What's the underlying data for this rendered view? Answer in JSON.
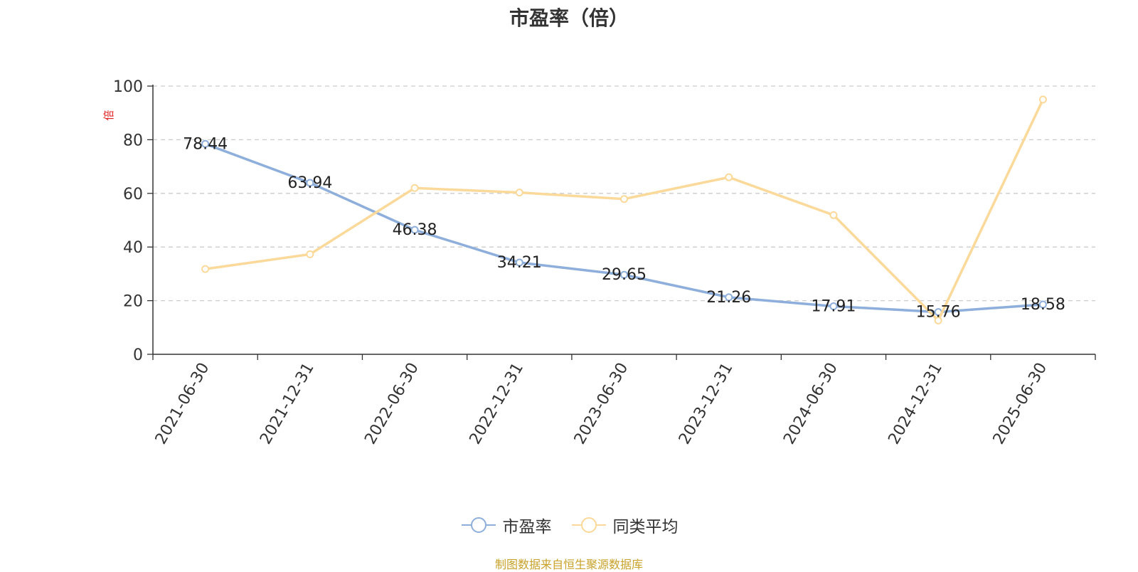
{
  "chart_data": {
    "type": "line",
    "title": "市盈率（倍）",
    "ylabel": "倍",
    "xlabel": "",
    "ylim": [
      0,
      100
    ],
    "yticks": [
      0,
      20,
      40,
      60,
      80,
      100
    ],
    "grid": true,
    "legend_position": "bottom-center",
    "categories": [
      "2021-06-30",
      "2021-12-31",
      "2022-06-30",
      "2022-12-31",
      "2023-06-30",
      "2023-12-31",
      "2024-06-30",
      "2024-12-31",
      "2025-06-30"
    ],
    "series": [
      {
        "name": "市盈率",
        "color": "#8eaedb",
        "values": [
          78.44,
          63.94,
          46.38,
          34.21,
          29.65,
          21.26,
          17.91,
          15.76,
          18.58
        ],
        "labels": [
          "78.44",
          "63.94",
          "46.38",
          "34.21",
          "29.65",
          "21.26",
          "17.91",
          "15.76",
          "18.58"
        ]
      },
      {
        "name": "同类平均",
        "color": "#fbd99a",
        "values": [
          31.8,
          37.3,
          62.0,
          60.3,
          57.9,
          66.0,
          51.9,
          12.6,
          95.0
        ]
      }
    ]
  },
  "source_note": "制图数据来自恒生聚源数据库"
}
